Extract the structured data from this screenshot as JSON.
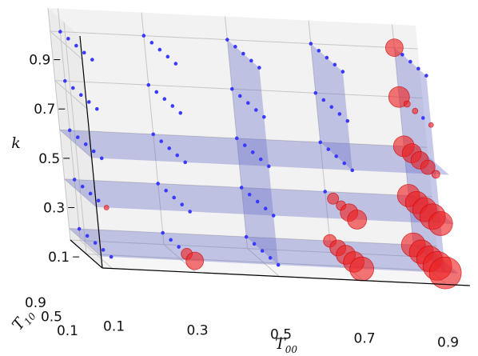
{
  "chart_data": {
    "type": "scatter",
    "dimensions": 3,
    "axes": {
      "x": {
        "symbol": "T",
        "subscript": "00",
        "ticks": [
          "0.1",
          "0.3",
          "0.5",
          "0.7",
          "0.9"
        ],
        "range": [
          0.1,
          0.9
        ]
      },
      "y": {
        "symbol": "T",
        "subscript": "10",
        "ticks": [
          "0.1",
          "0.5",
          "0.9"
        ],
        "range": [
          0.1,
          0.9
        ]
      },
      "z": {
        "symbol": "k",
        "ticks": [
          "0.1",
          "0.3",
          "0.5",
          "0.7",
          "0.9"
        ],
        "range": [
          0.1,
          0.9
        ]
      }
    },
    "T00_levels": [
      0.1,
      0.3,
      0.5,
      0.7,
      0.9
    ],
    "T10_levels": [
      0.1,
      0.3,
      0.5,
      0.7,
      0.9
    ],
    "k_levels": [
      0.1,
      0.3,
      0.5,
      0.7,
      0.9
    ],
    "colors": {
      "blue": "#3a3aff",
      "red": "#ee2222",
      "plane": "#6d72c8"
    },
    "series": [
      {
        "color": "red",
        "points": [
          {
            "T00": 0.9,
            "T10": 0.9,
            "k": 0.9,
            "size": 11
          },
          {
            "T00": 0.9,
            "T10": 0.9,
            "k": 0.7,
            "size": 13
          },
          {
            "T00": 0.9,
            "T10": 0.1,
            "k": 0.7,
            "size": 3
          },
          {
            "T00": 0.9,
            "T10": 0.5,
            "k": 0.7,
            "size": 3.5
          },
          {
            "T00": 0.9,
            "T10": 0.7,
            "k": 0.7,
            "size": 4
          },
          {
            "T00": 0.9,
            "T10": 0.1,
            "k": 0.5,
            "size": 5
          },
          {
            "T00": 0.9,
            "T10": 0.3,
            "k": 0.5,
            "size": 9
          },
          {
            "T00": 0.9,
            "T10": 0.5,
            "k": 0.5,
            "size": 11
          },
          {
            "T00": 0.9,
            "T10": 0.7,
            "k": 0.5,
            "size": 12
          },
          {
            "T00": 0.9,
            "T10": 0.9,
            "k": 0.5,
            "size": 13
          },
          {
            "T00": 0.1,
            "T10": 0.1,
            "k": 0.3,
            "size": 3
          },
          {
            "T00": 0.7,
            "T10": 0.1,
            "k": 0.3,
            "size": 12
          },
          {
            "T00": 0.7,
            "T10": 0.3,
            "k": 0.3,
            "size": 11
          },
          {
            "T00": 0.7,
            "T10": 0.5,
            "k": 0.3,
            "size": 6
          },
          {
            "T00": 0.7,
            "T10": 0.7,
            "k": 0.3,
            "size": 7
          },
          {
            "T00": 0.9,
            "T10": 0.1,
            "k": 0.3,
            "size": 15
          },
          {
            "T00": 0.9,
            "T10": 0.3,
            "k": 0.3,
            "size": 16
          },
          {
            "T00": 0.9,
            "T10": 0.5,
            "k": 0.3,
            "size": 15
          },
          {
            "T00": 0.9,
            "T10": 0.7,
            "k": 0.3,
            "size": 14
          },
          {
            "T00": 0.9,
            "T10": 0.9,
            "k": 0.3,
            "size": 14
          },
          {
            "T00": 0.3,
            "T10": 0.1,
            "k": 0.1,
            "size": 11
          },
          {
            "T00": 0.3,
            "T10": 0.3,
            "k": 0.1,
            "size": 7
          },
          {
            "T00": 0.7,
            "T10": 0.1,
            "k": 0.1,
            "size": 15
          },
          {
            "T00": 0.7,
            "T10": 0.3,
            "k": 0.1,
            "size": 13
          },
          {
            "T00": 0.7,
            "T10": 0.5,
            "k": 0.1,
            "size": 12
          },
          {
            "T00": 0.7,
            "T10": 0.7,
            "k": 0.1,
            "size": 10
          },
          {
            "T00": 0.7,
            "T10": 0.9,
            "k": 0.1,
            "size": 8
          },
          {
            "T00": 0.9,
            "T10": 0.1,
            "k": 0.1,
            "size": 20
          },
          {
            "T00": 0.9,
            "T10": 0.3,
            "k": 0.1,
            "size": 18
          },
          {
            "T00": 0.9,
            "T10": 0.5,
            "k": 0.1,
            "size": 16
          },
          {
            "T00": 0.9,
            "T10": 0.7,
            "k": 0.1,
            "size": 15
          },
          {
            "T00": 0.9,
            "T10": 0.9,
            "k": 0.1,
            "size": 15
          }
        ]
      }
    ],
    "blue_points": "all remaining (T00, T10, k) grid combinations, drawn as small blue dots",
    "shaded_planes": [
      {
        "type": "k",
        "value": 0.1,
        "T00_from": 0.1,
        "T00_to": 0.9
      },
      {
        "type": "k",
        "value": 0.3,
        "T00_from": 0.1,
        "T00_to": 0.9
      },
      {
        "type": "k",
        "value": 0.5,
        "T00_from": 0.1,
        "T00_to": 0.9
      },
      {
        "type": "T00",
        "value": 0.5,
        "k_from": 0.1,
        "k_to": 0.9
      },
      {
        "type": "T00",
        "value": 0.7,
        "k_from": 0.5,
        "k_to": 0.9
      },
      {
        "type": "T00",
        "value": 0.9,
        "k_from": 0.1,
        "k_to": 0.9
      }
    ],
    "grid": true
  }
}
